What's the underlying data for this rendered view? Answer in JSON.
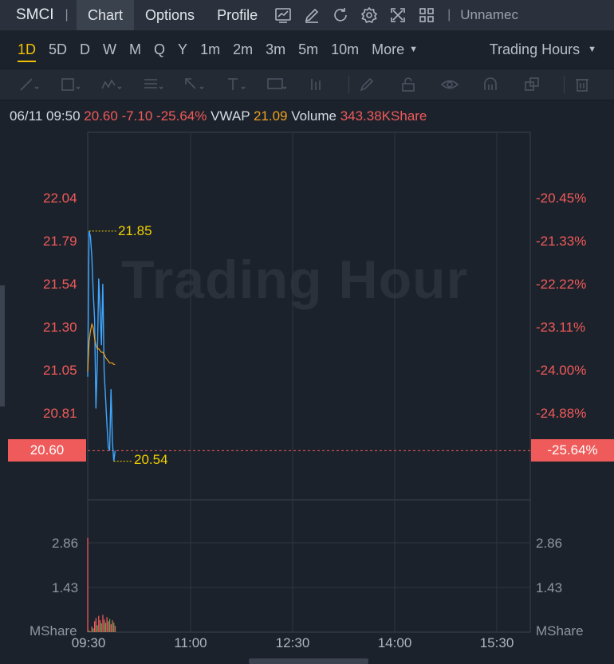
{
  "topbar": {
    "symbol": "SMCI",
    "tabs": [
      {
        "label": "Chart",
        "active": true
      },
      {
        "label": "Options",
        "active": false
      },
      {
        "label": "Profile",
        "active": false
      }
    ],
    "icons": [
      "chart-type-icon",
      "draw-pen-icon",
      "refresh-icon",
      "settings-icon",
      "fullscreen-icon",
      "layout-grid-icon"
    ],
    "layout_name": "Unnamec"
  },
  "periods": {
    "items": [
      "1D",
      "5D",
      "D",
      "W",
      "M",
      "Q",
      "Y",
      "1m",
      "2m",
      "3m",
      "5m",
      "10m"
    ],
    "selected": "1D",
    "more_label": "More",
    "session_label": "Trading Hours"
  },
  "info": {
    "datetime": "06/11 09:50",
    "price": "20.60",
    "change": "-7.10",
    "change_pct": "-25.64%",
    "vwap_label": "VWAP",
    "vwap_value": "21.09",
    "volume_label": "Volume",
    "volume_value": "343.38KShare"
  },
  "watermark": "Trading Hour",
  "price_axis_left": [
    "22.04",
    "21.79",
    "21.54",
    "21.30",
    "21.05",
    "20.81"
  ],
  "price_axis_right": [
    "-20.45%",
    "-21.33%",
    "-22.22%",
    "-23.11%",
    "-24.00%",
    "-24.88%"
  ],
  "current_price_left": "20.60",
  "current_price_right": "-25.64%",
  "high_label": "21.85",
  "low_label": "20.54",
  "volume_axis_left": [
    "2.86",
    "1.43"
  ],
  "volume_axis_right": [
    "2.86",
    "1.43"
  ],
  "volume_unit_left": "MShare",
  "volume_unit_right": "MShare",
  "time_axis": [
    "09:30",
    "11:00",
    "12:30",
    "14:00",
    "15:30"
  ],
  "colors": {
    "accent": "#f0c000",
    "down": "#ef5b5b",
    "price_line": "#3ea6ff",
    "vwap_line": "#f0a020"
  },
  "chart_data": {
    "type": "line",
    "x": [
      "09:30",
      "09:31",
      "09:32",
      "09:33",
      "09:34",
      "09:35",
      "09:36",
      "09:37",
      "09:38",
      "09:39",
      "09:40",
      "09:41",
      "09:42",
      "09:43",
      "09:44",
      "09:45",
      "09:46",
      "09:47",
      "09:48",
      "09:49",
      "09:50"
    ],
    "series": [
      {
        "values": [
          21.02,
          21.85,
          21.82,
          21.7,
          21.5,
          21.35,
          20.84,
          21.1,
          21.58,
          21.4,
          21.2,
          21.55,
          21.05,
          20.9,
          20.75,
          20.62,
          20.6,
          20.95,
          20.65,
          20.54,
          20.6
        ]
      },
      {
        "name": "VWAP",
        "values": [
          21.05,
          21.22,
          21.28,
          21.32,
          21.3,
          21.24,
          21.2,
          21.18,
          21.18,
          21.17,
          21.16,
          21.16,
          21.15,
          21.13,
          21.12,
          21.11,
          21.1,
          21.1,
          21.1,
          21.09,
          21.09
        ]
      }
    ],
    "volume": [
      3.02,
      0.05,
      0.02,
      0.18,
      0.12,
      0.35,
      0.45,
      0.22,
      0.52,
      0.38,
      0.28,
      0.55,
      0.4,
      0.3,
      0.48,
      0.35,
      0.42,
      0.25,
      0.38,
      0.3,
      0.2
    ],
    "ylim": [
      20.54,
      22.04
    ],
    "volume_ylim": [
      0,
      2.86
    ],
    "xlim": [
      "09:30",
      "16:00"
    ]
  }
}
